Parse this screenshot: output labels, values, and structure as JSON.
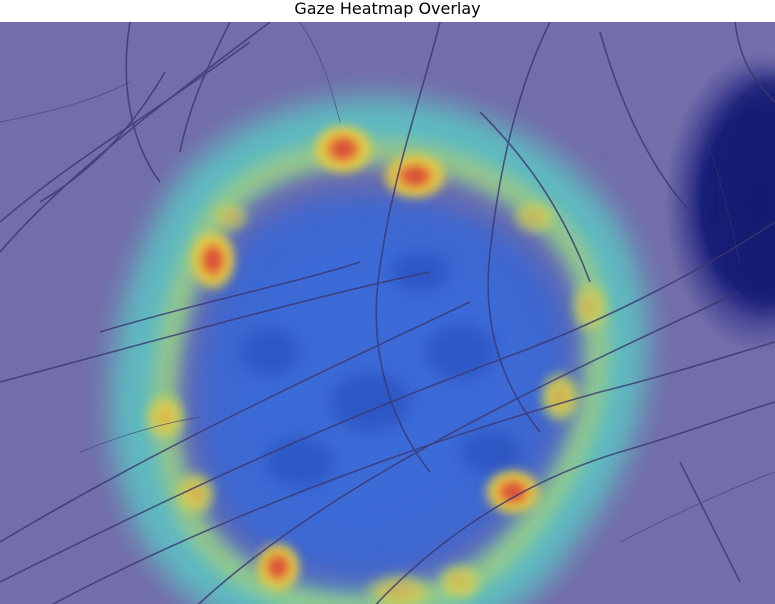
{
  "title": "Gaze Heatmap Overlay",
  "colors": {
    "skin_background": "#6f6aa8",
    "lesion_dark": "#1a1f7a",
    "heat_cool": "#2a5cd8",
    "heat_mid": "#4fd0e0",
    "heat_warm": "#e8d040",
    "heat_hot": "#d83a3a",
    "hair": "#3a3870"
  },
  "layers": {
    "background_image": "dermoscopy-skin-lesion",
    "overlay": "gaze-heatmap"
  }
}
